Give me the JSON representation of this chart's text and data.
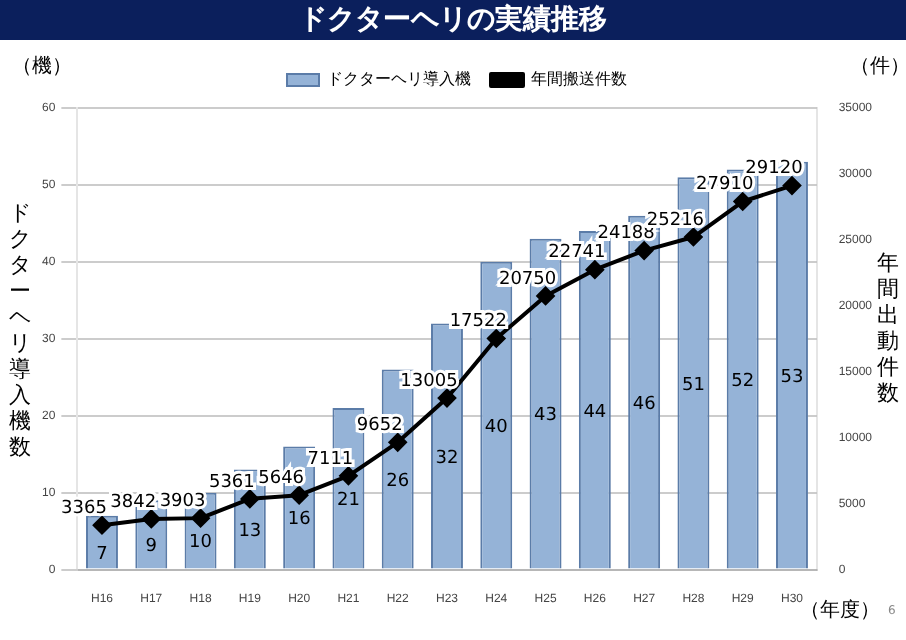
{
  "chart_data": {
    "type": "bar",
    "title": "ドクターヘリの実績推移",
    "ylabel": "ドクターヘリ導入機数",
    "y2label": "年間出動件数",
    "categories": [
      "H16",
      "H17",
      "H18",
      "H19",
      "H20",
      "H21",
      "H22",
      "H23",
      "H24",
      "H25",
      "H26",
      "H27",
      "H28",
      "H29",
      "H30"
    ],
    "series": [
      {
        "name": "ドクターヘリ導入機",
        "color": "#95b3d7",
        "values": [
          7,
          9,
          10,
          13,
          16,
          21,
          26,
          32,
          40,
          43,
          44,
          46,
          51,
          52,
          53
        ]
      },
      {
        "name": "年間搬送件数",
        "type": "line",
        "axis": "y2",
        "color": "#000000",
        "marker": "diamond",
        "values": [
          3365,
          3842,
          3903,
          5361,
          5646,
          7111,
          9652,
          13005,
          17522,
          20750,
          22741,
          24188,
          25216,
          27910,
          29120
        ]
      }
    ],
    "ylim": [
      0,
      60
    ],
    "yticks": [
      0,
      10,
      20,
      30,
      40,
      50,
      60
    ],
    "y2lim": [
      0,
      35000
    ],
    "y2ticks": [
      0,
      5000,
      10000,
      15000,
      20000,
      25000,
      30000,
      35000
    ],
    "grid": "y",
    "legend": "top",
    "data_labels": true,
    "annotations": [
      "（機）",
      "（件）",
      "（年度）",
      "6"
    ]
  }
}
